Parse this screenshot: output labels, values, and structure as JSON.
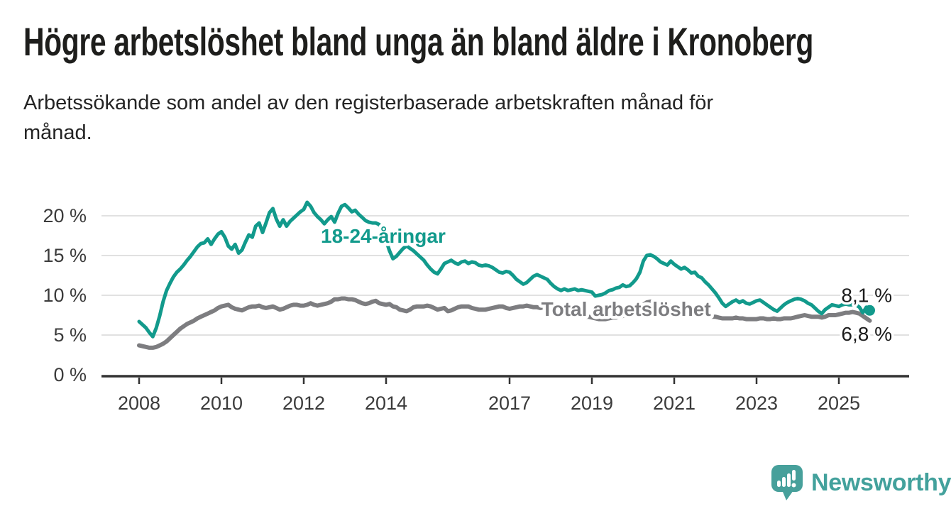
{
  "header": {
    "title": "Högre arbetslöshet bland unga än bland äldre i Kronoberg",
    "subtitle": "Arbetssökande som andel av den registerbaserade arbetskraften månad för\nmånad."
  },
  "branding": {
    "logo_text": "Newsworthy",
    "logo_color": "#43a19c",
    "icon": "bar-chart-speech-bubble"
  },
  "chart_data": {
    "type": "line",
    "title": "Högre arbetslöshet bland unga än bland äldre i Kronoberg",
    "subtitle": "Arbetssökande som andel av den registerbaserade arbetskraften månad för månad.",
    "x_unit": "month",
    "x_start": "2008-01",
    "x_end": "2025-10",
    "ylim": [
      0,
      22.5
    ],
    "grid": "horizontal",
    "grid_color": "#d7d7d7",
    "axis_color": "#333333",
    "tick_label_color": "#3b3b3b",
    "end_label_color": "#1c1c1c",
    "yticks": [
      {
        "value": 0,
        "label": "0 %"
      },
      {
        "value": 5,
        "label": "5 %"
      },
      {
        "value": 10,
        "label": "10 %"
      },
      {
        "value": 15,
        "label": "15 %"
      },
      {
        "value": 20,
        "label": "20 %"
      }
    ],
    "xticks": [
      {
        "value": 2008,
        "label": "2008"
      },
      {
        "value": 2010,
        "label": "2010"
      },
      {
        "value": 2012,
        "label": "2012"
      },
      {
        "value": 2014,
        "label": "2014"
      },
      {
        "value": 2017,
        "label": "2017"
      },
      {
        "value": 2019,
        "label": "2019"
      },
      {
        "value": 2021,
        "label": "2021"
      },
      {
        "value": 2023,
        "label": "2023"
      },
      {
        "value": 2025,
        "label": "2025"
      }
    ],
    "series": [
      {
        "id": "total",
        "name": "Total arbetslöshet",
        "color": "#7d7d80",
        "line_width": 6,
        "end_dot": false,
        "end_value_label": "6,8 %",
        "inline_label": {
          "text": "Total arbetslöshet",
          "time": 2019.83,
          "value": 8.3
        },
        "values": [
          3.7,
          3.6,
          3.5,
          3.4,
          3.4,
          3.5,
          3.7,
          3.9,
          4.2,
          4.6,
          5.0,
          5.4,
          5.8,
          6.1,
          6.4,
          6.6,
          6.8,
          7.1,
          7.3,
          7.5,
          7.7,
          7.9,
          8.1,
          8.4,
          8.6,
          8.7,
          8.8,
          8.5,
          8.3,
          8.2,
          8.1,
          8.3,
          8.5,
          8.6,
          8.6,
          8.7,
          8.5,
          8.4,
          8.5,
          8.6,
          8.4,
          8.2,
          8.3,
          8.5,
          8.7,
          8.8,
          8.8,
          8.7,
          8.7,
          8.8,
          9.0,
          8.8,
          8.7,
          8.8,
          8.9,
          9.0,
          9.2,
          9.5,
          9.5,
          9.6,
          9.6,
          9.5,
          9.5,
          9.4,
          9.2,
          9.0,
          8.9,
          9.0,
          9.2,
          9.3,
          9.0,
          8.9,
          8.8,
          8.9,
          8.6,
          8.5,
          8.2,
          8.1,
          8.0,
          8.2,
          8.5,
          8.6,
          8.6,
          8.6,
          8.7,
          8.6,
          8.4,
          8.2,
          8.3,
          8.4,
          8.0,
          8.1,
          8.3,
          8.5,
          8.6,
          8.6,
          8.6,
          8.4,
          8.3,
          8.2,
          8.2,
          8.2,
          8.3,
          8.4,
          8.5,
          8.6,
          8.6,
          8.4,
          8.3,
          8.4,
          8.5,
          8.6,
          8.6,
          8.7,
          8.6,
          8.5,
          8.5,
          8.4,
          8.5,
          8.5,
          8.4,
          8.3,
          8.1,
          8.0,
          7.8,
          7.7,
          7.6,
          7.5,
          7.4,
          7.3,
          7.3,
          7.3,
          7.2,
          7.1,
          7.0,
          7.0,
          7.0,
          7.1,
          7.2,
          7.2,
          7.3,
          7.4,
          7.5,
          7.6,
          7.7,
          7.9,
          8.3,
          8.8,
          9.1,
          9.2,
          9.2,
          9.1,
          9.0,
          8.8,
          8.7,
          8.7,
          8.7,
          8.6,
          8.5,
          8.4,
          8.2,
          8.0,
          7.9,
          7.8,
          7.6,
          7.5,
          7.4,
          7.3,
          7.3,
          7.2,
          7.1,
          7.1,
          7.1,
          7.1,
          7.2,
          7.1,
          7.1,
          7.0,
          7.0,
          7.0,
          7.0,
          7.1,
          7.1,
          7.0,
          7.0,
          7.1,
          7.0,
          7.0,
          7.1,
          7.1,
          7.1,
          7.2,
          7.3,
          7.4,
          7.5,
          7.4,
          7.3,
          7.3,
          7.3,
          7.2,
          7.3,
          7.5,
          7.5,
          7.5,
          7.6,
          7.7,
          7.8,
          7.8,
          7.9,
          7.8,
          7.7,
          7.4,
          7.1,
          6.8
        ]
      },
      {
        "id": "youth",
        "name": "18-24-åringar",
        "color": "#129a8c",
        "line_width": 5,
        "end_dot": true,
        "end_value_label": "8,1 %",
        "inline_label": {
          "text": "18-24-åringar",
          "time": 2013.93,
          "value": 17.5
        },
        "values": [
          6.7,
          6.3,
          5.9,
          5.3,
          4.8,
          5.9,
          7.4,
          9.2,
          10.6,
          11.5,
          12.3,
          12.9,
          13.3,
          13.8,
          14.4,
          14.9,
          15.5,
          16.1,
          16.5,
          16.6,
          17.1,
          16.4,
          17.1,
          17.7,
          18.0,
          17.3,
          16.2,
          15.8,
          16.4,
          15.3,
          15.7,
          16.7,
          17.6,
          17.3,
          18.7,
          19.1,
          17.9,
          19.1,
          20.4,
          20.9,
          19.6,
          18.7,
          19.5,
          18.7,
          19.3,
          19.7,
          20.1,
          20.5,
          20.8,
          21.7,
          21.2,
          20.4,
          19.9,
          19.5,
          19.0,
          19.5,
          19.9,
          19.2,
          20.3,
          21.2,
          21.4,
          21.0,
          20.5,
          20.7,
          20.2,
          19.8,
          19.4,
          19.2,
          19.1,
          19.1,
          18.9,
          18.0,
          16.9,
          15.6,
          14.6,
          14.9,
          15.4,
          15.9,
          16.2,
          15.9,
          15.6,
          15.2,
          14.8,
          14.4,
          13.8,
          13.3,
          12.9,
          12.7,
          13.3,
          14.0,
          14.2,
          14.4,
          14.1,
          13.9,
          14.2,
          14.3,
          14.0,
          14.2,
          14.1,
          13.8,
          13.7,
          13.8,
          13.7,
          13.5,
          13.2,
          12.9,
          12.8,
          13.0,
          12.9,
          12.5,
          12.0,
          11.7,
          11.4,
          11.6,
          12.0,
          12.4,
          12.6,
          12.4,
          12.2,
          12.0,
          11.5,
          11.1,
          10.8,
          10.6,
          10.8,
          10.6,
          10.7,
          10.8,
          10.6,
          10.7,
          10.6,
          10.5,
          10.4,
          9.9,
          10.0,
          10.1,
          10.3,
          10.6,
          10.7,
          10.9,
          11.0,
          11.3,
          11.1,
          11.2,
          11.6,
          12.1,
          12.9,
          14.3,
          15.0,
          15.1,
          14.9,
          14.6,
          14.2,
          14.0,
          13.8,
          14.3,
          13.9,
          13.6,
          13.3,
          13.5,
          13.2,
          12.8,
          12.9,
          12.4,
          12.2,
          11.7,
          11.3,
          10.8,
          10.3,
          9.7,
          9.0,
          8.6,
          8.9,
          9.2,
          9.4,
          9.1,
          9.3,
          9.0,
          8.9,
          9.1,
          9.3,
          9.4,
          9.1,
          8.8,
          8.5,
          8.2,
          8.0,
          8.4,
          8.8,
          9.1,
          9.3,
          9.5,
          9.6,
          9.5,
          9.3,
          9.0,
          8.8,
          8.4,
          8.0,
          7.7,
          8.2,
          8.5,
          8.8,
          8.7,
          8.6,
          8.8,
          8.9,
          8.8,
          8.8,
          8.8,
          8.5,
          7.8,
          8.5,
          8.1
        ]
      }
    ]
  }
}
